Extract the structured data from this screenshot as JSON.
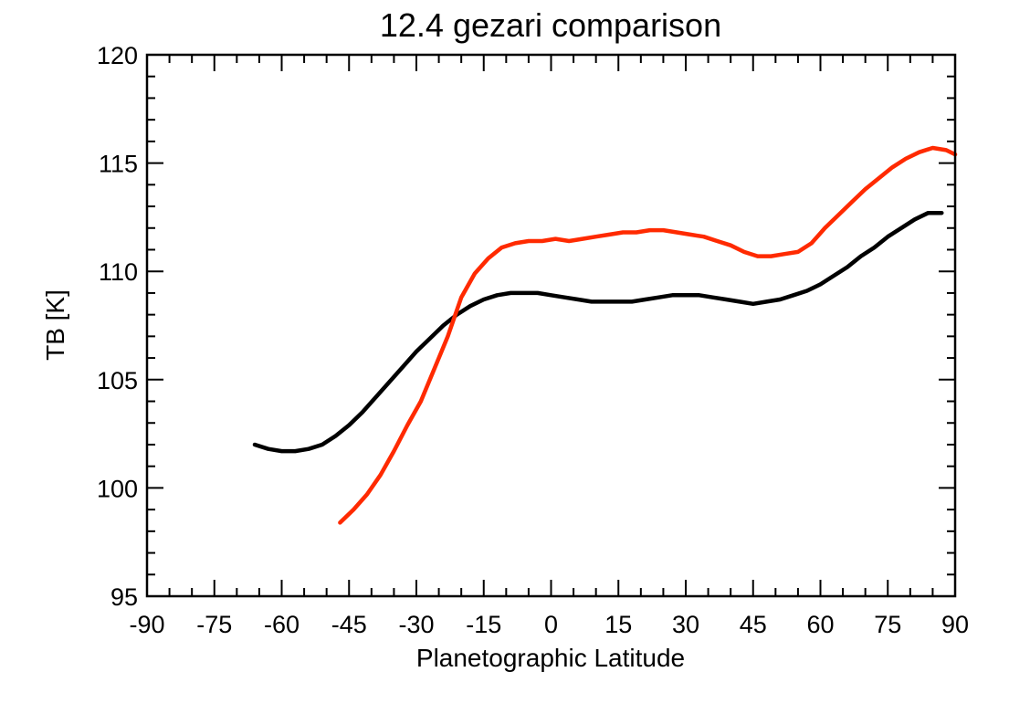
{
  "chart_data": {
    "type": "line",
    "title": "12.4 gezari comparison",
    "xlabel": "Planetographic Latitude",
    "ylabel": "TB [K]",
    "xlim": [
      -90,
      90
    ],
    "ylim": [
      95,
      120
    ],
    "grid": false,
    "x_major_ticks": [
      -90,
      -75,
      -60,
      -45,
      -30,
      -15,
      0,
      15,
      30,
      45,
      60,
      75,
      90
    ],
    "x_tick_labels": [
      "-90",
      "-75",
      "-60",
      "-45",
      "-30",
      "-15",
      "0",
      "15",
      "30",
      "45",
      "60",
      "75",
      "90"
    ],
    "x_minor_step": 5,
    "y_major_ticks": [
      95,
      100,
      105,
      110,
      115,
      120
    ],
    "y_tick_labels": [
      "95",
      "100",
      "105",
      "110",
      "115",
      "120"
    ],
    "y_minor_step": 1,
    "series": [
      {
        "color": "#000000",
        "x": [
          -66,
          -63,
          -60,
          -57,
          -54,
          -51,
          -48,
          -45,
          -42,
          -39,
          -36,
          -33,
          -30,
          -27,
          -24,
          -21,
          -18,
          -15,
          -12,
          -9,
          -6,
          -3,
          0,
          3,
          6,
          9,
          12,
          15,
          18,
          21,
          24,
          27,
          30,
          33,
          36,
          39,
          42,
          45,
          48,
          51,
          54,
          57,
          60,
          63,
          66,
          69,
          72,
          75,
          78,
          81,
          84,
          87
        ],
        "y": [
          102.0,
          101.8,
          101.7,
          101.7,
          101.8,
          102.0,
          102.4,
          102.9,
          103.5,
          104.2,
          104.9,
          105.6,
          106.3,
          106.9,
          107.5,
          108.0,
          108.4,
          108.7,
          108.9,
          109.0,
          109.0,
          109.0,
          108.9,
          108.8,
          108.7,
          108.6,
          108.6,
          108.6,
          108.6,
          108.7,
          108.8,
          108.9,
          108.9,
          108.9,
          108.8,
          108.7,
          108.6,
          108.5,
          108.6,
          108.7,
          108.9,
          109.1,
          109.4,
          109.8,
          110.2,
          110.7,
          111.1,
          111.6,
          112.0,
          112.4,
          112.7,
          112.7
        ]
      },
      {
        "color": "#ff2a00",
        "x": [
          -47,
          -44,
          -41,
          -38,
          -35,
          -32,
          -29,
          -26,
          -23,
          -20,
          -17,
          -14,
          -11,
          -8,
          -5,
          -2,
          1,
          4,
          7,
          10,
          13,
          16,
          19,
          22,
          25,
          28,
          31,
          34,
          37,
          40,
          43,
          46,
          49,
          52,
          55,
          58,
          61,
          64,
          67,
          70,
          73,
          76,
          79,
          82,
          85,
          88,
          90
        ],
        "y": [
          98.4,
          99.0,
          99.7,
          100.6,
          101.7,
          102.9,
          104.0,
          105.5,
          107.0,
          108.8,
          109.9,
          110.6,
          111.1,
          111.3,
          111.4,
          111.4,
          111.5,
          111.4,
          111.5,
          111.6,
          111.7,
          111.8,
          111.8,
          111.9,
          111.9,
          111.8,
          111.7,
          111.6,
          111.4,
          111.2,
          110.9,
          110.7,
          110.7,
          110.8,
          110.9,
          111.3,
          112.0,
          112.6,
          113.2,
          113.8,
          114.3,
          114.8,
          115.2,
          115.5,
          115.7,
          115.6,
          115.4
        ]
      }
    ]
  }
}
